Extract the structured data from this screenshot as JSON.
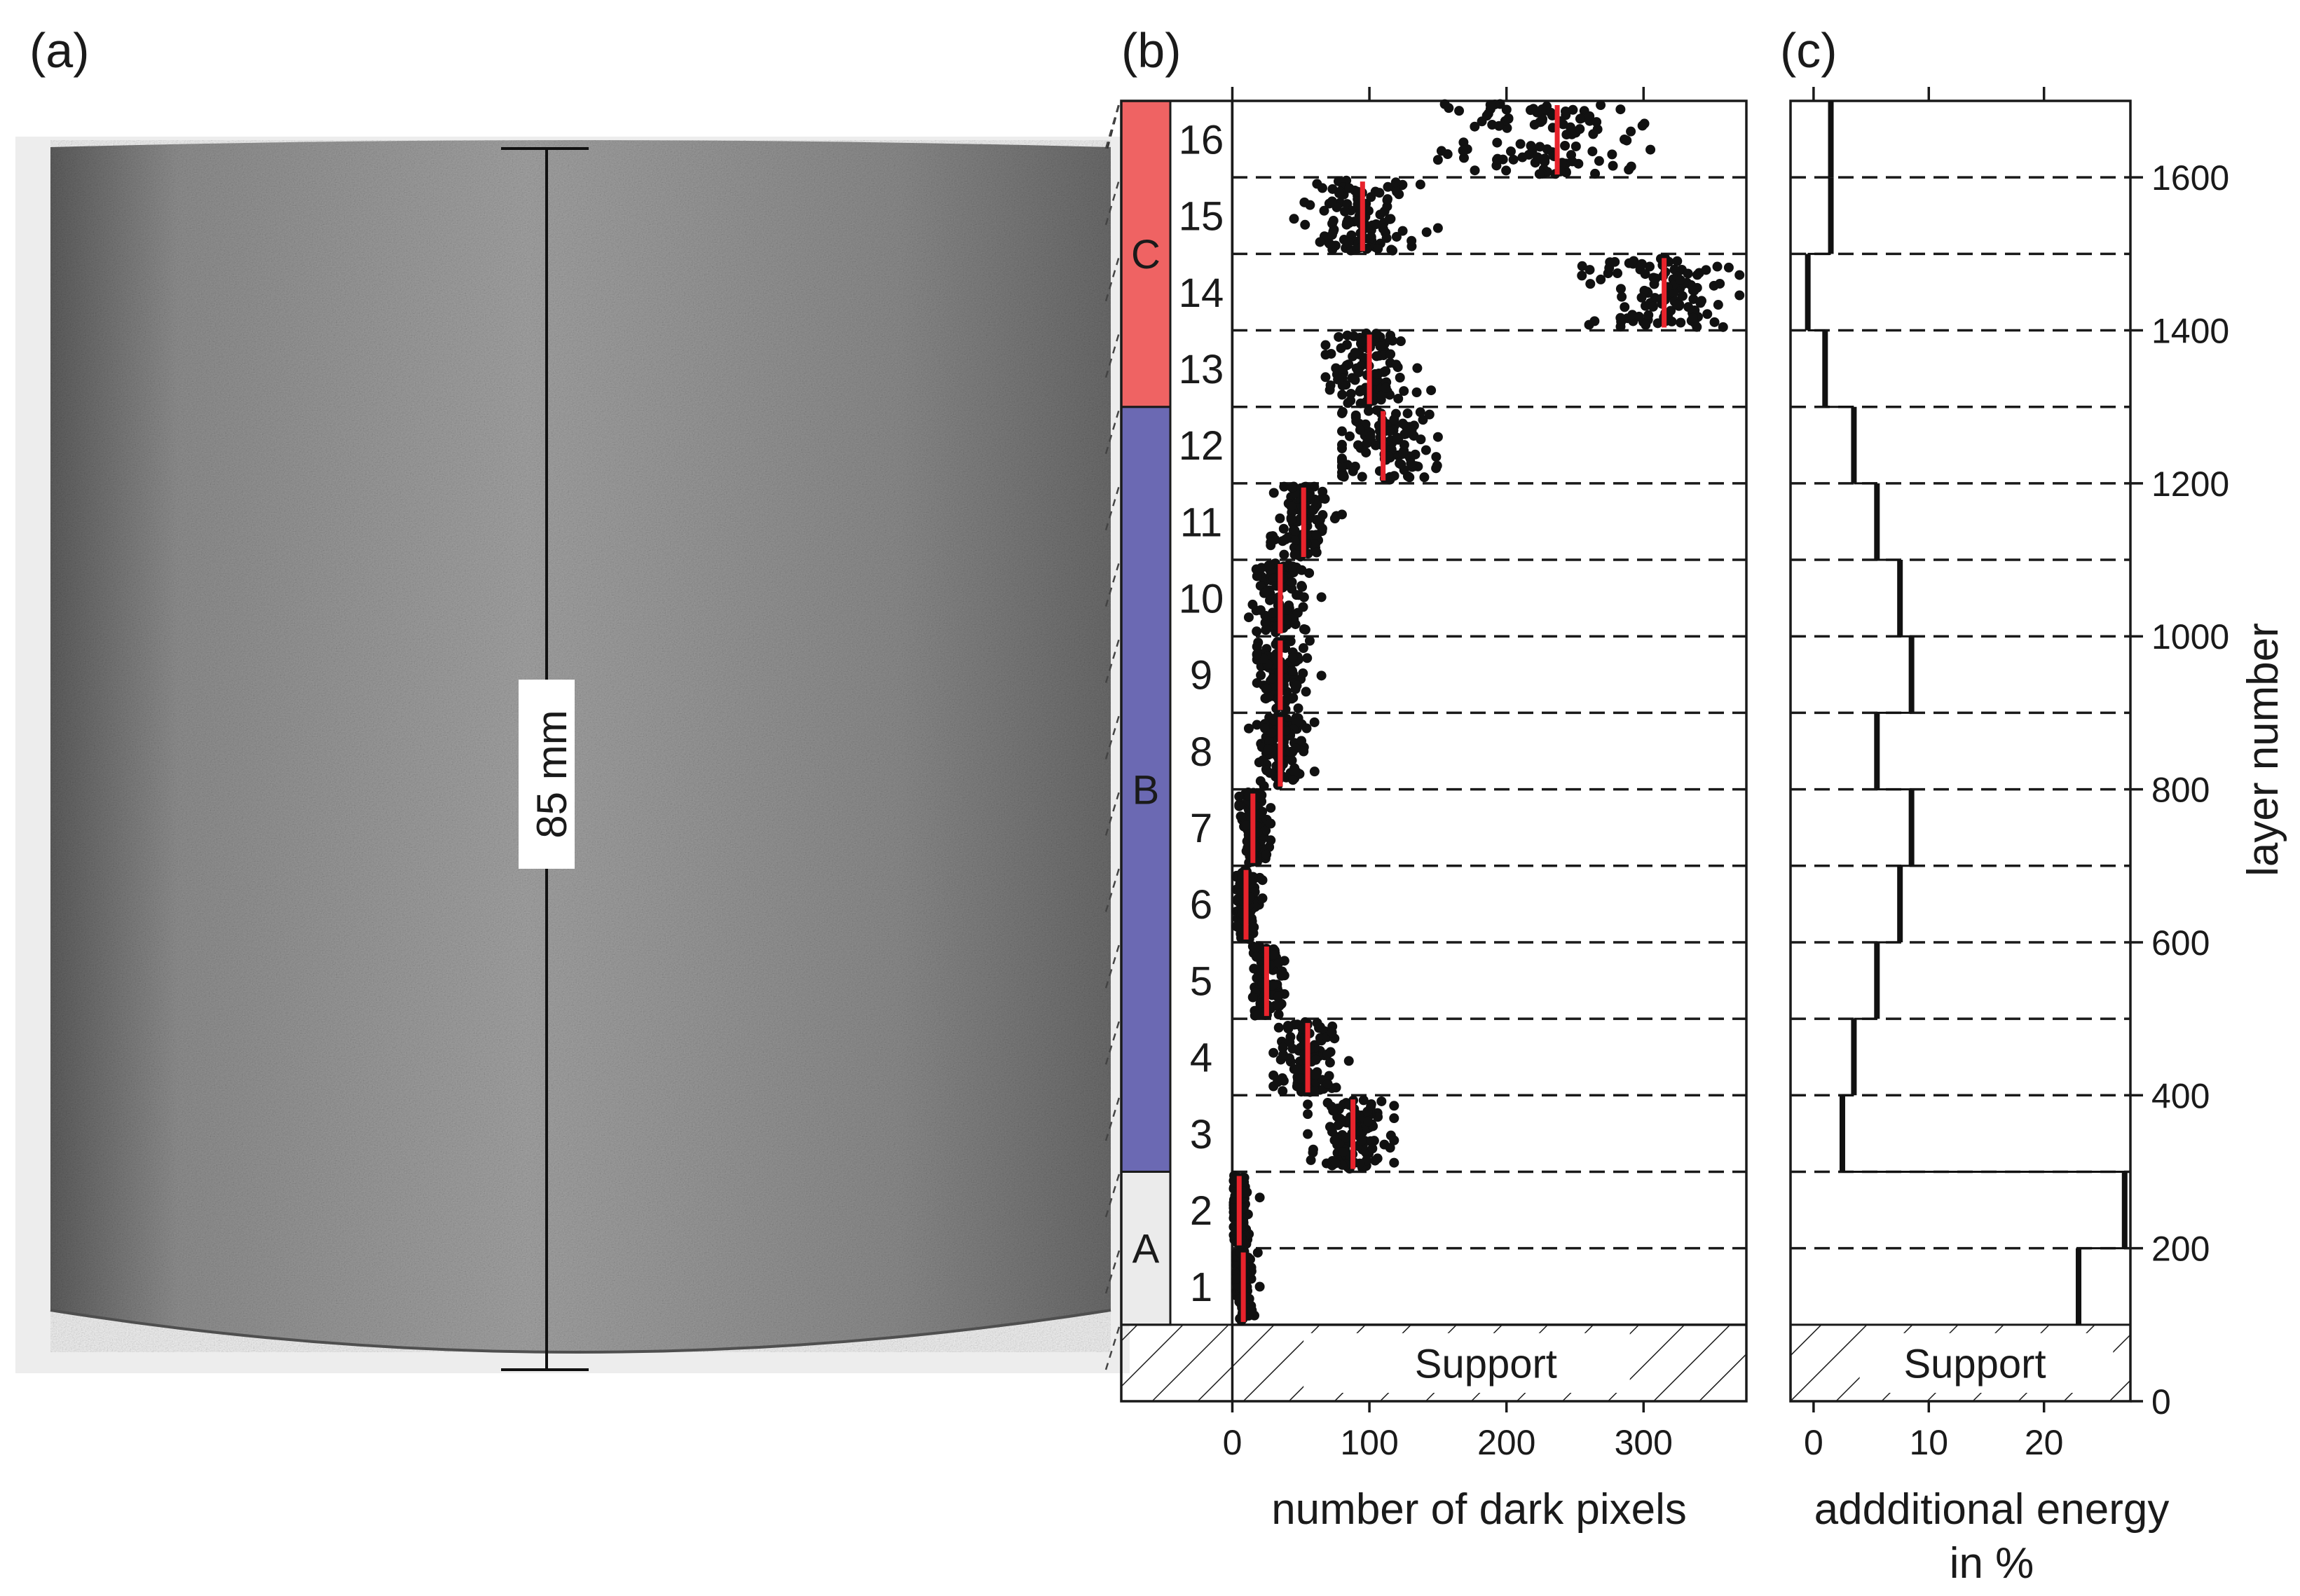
{
  "panel_labels": {
    "a": "(a)",
    "b": "(b)",
    "c": "(c)"
  },
  "photo": {
    "measurement_label": "85 mm"
  },
  "support_label": "Support",
  "groups": [
    {
      "label": "A",
      "color": "#ebebeb",
      "from_layer": 1,
      "to_layer": 2
    },
    {
      "label": "B",
      "color": "#6b69b3",
      "from_layer": 3,
      "to_layer": 12
    },
    {
      "label": "C",
      "color": "#ef6363",
      "from_layer": 13,
      "to_layer": 16
    }
  ],
  "chart_data": [
    {
      "type": "scatter",
      "panel": "b",
      "xlabel": "number of dark pixels",
      "ylabel": "layer number",
      "xlim": [
        -80,
        375
      ],
      "ylim": [
        0,
        1700
      ],
      "x_ticks": [
        0,
        100,
        200,
        300
      ],
      "support_range": [
        0,
        100
      ],
      "layer_blocks": [
        {
          "label": "1",
          "y_range": [
            100,
            200
          ],
          "median": 8,
          "spread": 4,
          "min": 3,
          "max": 20
        },
        {
          "label": "2",
          "y_range": [
            200,
            300
          ],
          "median": 5,
          "spread": 3,
          "min": 1,
          "max": 20
        },
        {
          "label": "3",
          "y_range": [
            300,
            400
          ],
          "median": 88,
          "spread": 12,
          "min": 55,
          "max": 118
        },
        {
          "label": "4",
          "y_range": [
            400,
            500
          ],
          "median": 55,
          "spread": 10,
          "min": 30,
          "max": 85
        },
        {
          "label": "5",
          "y_range": [
            500,
            600
          ],
          "median": 25,
          "spread": 6,
          "min": 15,
          "max": 38
        },
        {
          "label": "6",
          "y_range": [
            600,
            700
          ],
          "median": 10,
          "spread": 4,
          "min": 3,
          "max": 22
        },
        {
          "label": "7",
          "y_range": [
            700,
            800
          ],
          "median": 15,
          "spread": 5,
          "min": 5,
          "max": 28
        },
        {
          "label": "8",
          "y_range": [
            800,
            900
          ],
          "median": 35,
          "spread": 9,
          "min": 12,
          "max": 60
        },
        {
          "label": "9",
          "y_range": [
            900,
            1000
          ],
          "median": 35,
          "spread": 9,
          "min": 18,
          "max": 65
        },
        {
          "label": "10",
          "y_range": [
            1000,
            1100
          ],
          "median": 35,
          "spread": 9,
          "min": 12,
          "max": 65
        },
        {
          "label": "11",
          "y_range": [
            1100,
            1200
          ],
          "median": 52,
          "spread": 10,
          "min": 28,
          "max": 80
        },
        {
          "label": "12",
          "y_range": [
            1200,
            1300
          ],
          "median": 110,
          "spread": 18,
          "min": 80,
          "max": 150
        },
        {
          "label": "13",
          "y_range": [
            1300,
            1400
          ],
          "median": 100,
          "spread": 14,
          "min": 68,
          "max": 145
        },
        {
          "label": "14",
          "y_range": [
            1400,
            1500
          ],
          "median": 315,
          "spread": 25,
          "min": 255,
          "max": 370
        },
        {
          "label": "15",
          "y_range": [
            1500,
            1600
          ],
          "median": 95,
          "spread": 18,
          "min": 45,
          "max": 150
        },
        {
          "label": "16",
          "y_range": [
            1600,
            1700
          ],
          "median": 237,
          "spread": 32,
          "min": 150,
          "max": 305
        }
      ]
    },
    {
      "type": "line",
      "panel": "c",
      "xlabel": "addditional energy",
      "xlabel_line2": "in %",
      "ylabel": "layer number",
      "xlim": [
        -2,
        27.5
      ],
      "ylim": [
        0,
        1700
      ],
      "x_ticks": [
        0,
        10,
        20
      ],
      "y_ticks": [
        0,
        200,
        400,
        600,
        800,
        1000,
        1200,
        1400,
        1600
      ],
      "support_range": [
        0,
        100
      ],
      "steps": [
        {
          "y_range": [
            100,
            200
          ],
          "value": 23
        },
        {
          "y_range": [
            200,
            300
          ],
          "value": 27
        },
        {
          "y_range": [
            300,
            400
          ],
          "value": 2.5
        },
        {
          "y_range": [
            400,
            500
          ],
          "value": 3.5
        },
        {
          "y_range": [
            500,
            600
          ],
          "value": 5.5
        },
        {
          "y_range": [
            600,
            700
          ],
          "value": 7.5
        },
        {
          "y_range": [
            700,
            800
          ],
          "value": 8.5
        },
        {
          "y_range": [
            800,
            900
          ],
          "value": 5.5
        },
        {
          "y_range": [
            900,
            1000
          ],
          "value": 8.5
        },
        {
          "y_range": [
            1000,
            1100
          ],
          "value": 7.5
        },
        {
          "y_range": [
            1100,
            1200
          ],
          "value": 5.5
        },
        {
          "y_range": [
            1200,
            1300
          ],
          "value": 3.5
        },
        {
          "y_range": [
            1300,
            1400
          ],
          "value": 1
        },
        {
          "y_range": [
            1400,
            1500
          ],
          "value": -0.5
        },
        {
          "y_range": [
            1500,
            1600
          ],
          "value": 1.5
        },
        {
          "y_range": [
            1600,
            1700
          ],
          "value": 1.5
        }
      ]
    }
  ]
}
